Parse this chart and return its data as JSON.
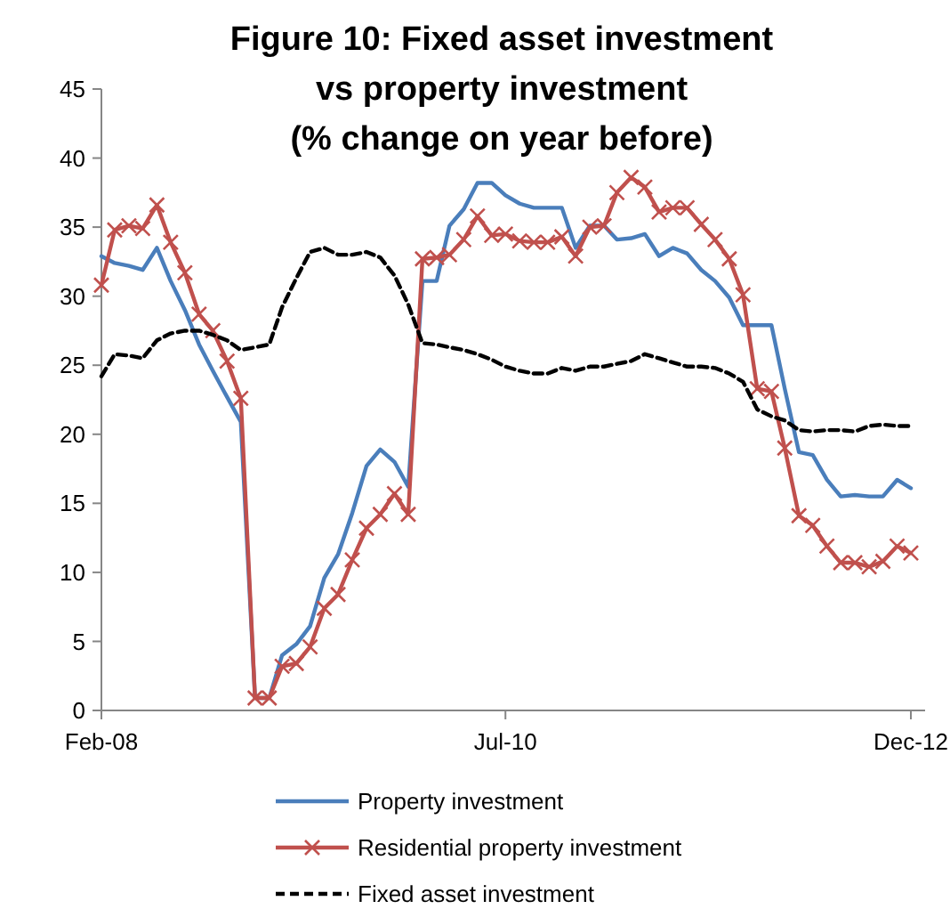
{
  "chart_data": {
    "type": "line",
    "title": "Figure 10: Fixed asset investment\nvs property investment\n(% change on year before)",
    "x": [
      "2008-02",
      "2008-03",
      "2008-04",
      "2008-05",
      "2008-06",
      "2008-07",
      "2008-08",
      "2008-09",
      "2008-10",
      "2008-11",
      "2008-12",
      "2009-01",
      "2009-02",
      "2009-03",
      "2009-04",
      "2009-05",
      "2009-06",
      "2009-07",
      "2009-08",
      "2009-09",
      "2009-10",
      "2009-11",
      "2009-12",
      "2010-01",
      "2010-02",
      "2010-03",
      "2010-04",
      "2010-05",
      "2010-06",
      "2010-07",
      "2010-08",
      "2010-09",
      "2010-10",
      "2010-11",
      "2010-12",
      "2011-01",
      "2011-02",
      "2011-03",
      "2011-04",
      "2011-05",
      "2011-06",
      "2011-07",
      "2011-08",
      "2011-09",
      "2011-10",
      "2011-11",
      "2011-12",
      "2012-01",
      "2012-02",
      "2012-03",
      "2012-04",
      "2012-05",
      "2012-06",
      "2012-07",
      "2012-08",
      "2012-09",
      "2012-10",
      "2012-11",
      "2012-12"
    ],
    "series": [
      {
        "name": "Property investment",
        "color": "#4a7ebb",
        "marker": "none",
        "line_style": "solid",
        "values": [
          32.9,
          32.4,
          32.2,
          31.9,
          33.5,
          31.1,
          29.0,
          26.5,
          24.6,
          22.7,
          20.9,
          0.9,
          0.9,
          4.0,
          4.8,
          6.1,
          9.6,
          11.3,
          14.3,
          17.7,
          18.9,
          18.0,
          16.2,
          31.1,
          31.1,
          35.1,
          36.3,
          38.2,
          38.2,
          37.3,
          36.7,
          36.4,
          36.4,
          36.4,
          33.5,
          35.1,
          35.1,
          34.1,
          34.2,
          34.5,
          32.9,
          33.5,
          33.1,
          31.9,
          31.1,
          29.9,
          27.9,
          27.9,
          27.9,
          23.3,
          18.7,
          18.5,
          16.7,
          15.5,
          15.6,
          15.5,
          15.5,
          16.7,
          16.1
        ]
      },
      {
        "name": "Residential property investment",
        "color": "#c0504d",
        "marker": "cross",
        "line_style": "solid",
        "values": [
          30.8,
          34.8,
          35.1,
          34.9,
          36.6,
          33.9,
          31.7,
          28.7,
          27.5,
          25.3,
          22.6,
          0.9,
          0.9,
          3.2,
          3.4,
          4.6,
          7.4,
          8.4,
          10.9,
          13.2,
          14.2,
          15.7,
          14.2,
          32.7,
          32.8,
          33.0,
          34.1,
          35.8,
          34.4,
          34.5,
          34.0,
          33.9,
          33.9,
          34.3,
          32.9,
          35.0,
          35.1,
          37.5,
          38.6,
          37.9,
          36.1,
          36.4,
          36.4,
          35.2,
          34.1,
          32.7,
          30.1,
          23.3,
          23.1,
          19.0,
          14.1,
          13.4,
          11.9,
          10.7,
          10.7,
          10.4,
          10.8,
          11.9,
          11.4
        ]
      },
      {
        "name": "Fixed asset investment",
        "color": "#000000",
        "marker": "none",
        "line_style": "dashed",
        "values": [
          24.2,
          25.8,
          25.7,
          25.5,
          26.8,
          27.3,
          27.5,
          27.5,
          27.2,
          26.8,
          26.1,
          26.3,
          26.5,
          29.2,
          31.3,
          33.2,
          33.5,
          33.0,
          33.0,
          33.2,
          32.8,
          31.5,
          29.4,
          26.6,
          26.5,
          26.3,
          26.1,
          25.8,
          25.4,
          24.9,
          24.6,
          24.4,
          24.4,
          24.8,
          24.6,
          24.9,
          24.9,
          25.1,
          25.3,
          25.8,
          25.5,
          25.2,
          24.9,
          24.9,
          24.8,
          24.4,
          23.8,
          21.8,
          21.3,
          21.0,
          20.3,
          20.2,
          20.3,
          20.3,
          20.2,
          20.6,
          20.7,
          20.6,
          20.6
        ]
      }
    ],
    "xlim": [
      "2008-02",
      "2013-01"
    ],
    "xticks": [
      {
        "value": "2008-02",
        "label": "Feb-08"
      },
      {
        "value": "2010-07",
        "label": "Jul-10"
      },
      {
        "value": "2012-12",
        "label": "Dec-12"
      }
    ],
    "ylim": [
      0,
      45
    ],
    "yticks": [
      0,
      5,
      10,
      15,
      20,
      25,
      30,
      35,
      40,
      45
    ],
    "grid": false,
    "legend": "bottom"
  }
}
